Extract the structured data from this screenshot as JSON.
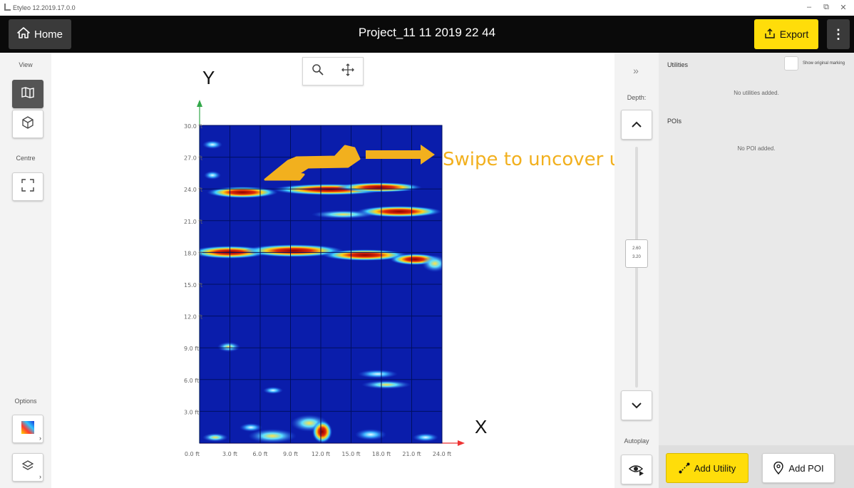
{
  "os_window": {
    "title": "Etyleo 12.2019.17.0.0",
    "minimize_glyph": "–",
    "restore_glyph": "⧉",
    "close_glyph": "✕"
  },
  "header": {
    "home_label": "Home",
    "project_title": "Project_11 11 2019 22 44",
    "export_label": "Export",
    "more_glyph": "⋮"
  },
  "left_panel": {
    "view_label": "View",
    "centre_label": "Centre",
    "options_label": "Options"
  },
  "map": {
    "x_axis_letter": "X",
    "y_axis_letter": "Y",
    "y_ticks": [
      "30.0 ft",
      "27.0 ft",
      "24.0 ft",
      "21.0 ft",
      "18.0 ft",
      "15.0 ft",
      "12.0 ft",
      "9.0 ft",
      "6.0 ft",
      "3.0 ft"
    ],
    "x_ticks": [
      "0.0 ft",
      "3.0 ft",
      "6.0 ft",
      "9.0 ft",
      "12.0 ft",
      "15.0 ft",
      "18.0 ft",
      "21.0 ft",
      "24.0 ft"
    ],
    "hint_text": "Swipe to uncover utility",
    "colors": {
      "background": "#0a1dab",
      "grid": "#000f60",
      "hint": "#f2b01e"
    }
  },
  "right_strip": {
    "collapse_glyph": "»",
    "depth_label": "Depth:",
    "depth_values": [
      "2.60",
      "3.20"
    ],
    "autoplay_label": "Autoplay"
  },
  "right_panel": {
    "utilities_heading": "Utilities",
    "show_original_label": "Show original marking",
    "utilities_empty": "No utilities added.",
    "pois_heading": "POIs",
    "pois_empty": "No POI added.",
    "add_utility_label": "Add Utility",
    "add_poi_label": "Add POI"
  }
}
